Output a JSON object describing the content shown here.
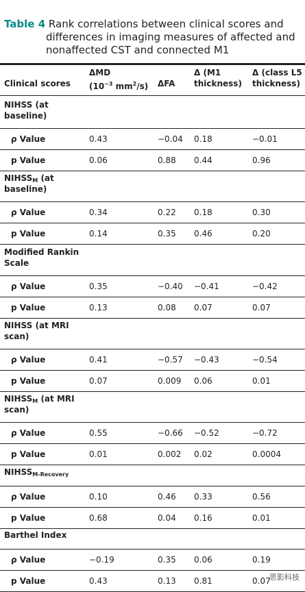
{
  "caption": {
    "label": "Table 4",
    "line1": "Rank correlations between clinical scores and",
    "line2": "differences in imaging measures of affected and",
    "line3": "nonaffected CST and connected M1"
  },
  "headers": {
    "clinical_scores": "Clinical scores",
    "md_line1": "ΔMD",
    "md_line2a": "(10",
    "md_exp": "−3",
    "md_line2b": " mm",
    "md_sq": "2",
    "md_line2c": "/s)",
    "fa": "ΔFA",
    "m1_line1": "Δ (M1",
    "m1_line2": "thickness)",
    "l5_line1": "Δ (class L5",
    "l5_line2": "thickness)"
  },
  "sections": [
    {
      "title": "NIHSS (at",
      "title2": "baseline)",
      "sub": "",
      "rows": [
        {
          "label": "ρ Value",
          "md": "0.43",
          "fa": "−0.04",
          "m1": "0.18",
          "l5": "−0.01"
        },
        {
          "label": "p Value",
          "md": "0.06",
          "fa": "0.88",
          "m1": "0.44",
          "l5": "0.96"
        }
      ]
    },
    {
      "title": "NIHSS",
      "sub": "M",
      "title_after": " (at",
      "title2": "baseline)",
      "rows": [
        {
          "label": "ρ Value",
          "md": "0.34",
          "fa": "0.22",
          "m1": "0.18",
          "l5": "0.30"
        },
        {
          "label": "p Value",
          "md": "0.14",
          "fa": "0.35",
          "m1": "0.46",
          "l5": "0.20"
        }
      ]
    },
    {
      "title": "Modified Rankin",
      "title2": "Scale",
      "sub": "",
      "rows": [
        {
          "label": "ρ Value",
          "md": "0.35",
          "fa": "−0.40",
          "m1": "−0.41",
          "l5": "−0.42"
        },
        {
          "label": "p Value",
          "md": "0.13",
          "fa": "0.08",
          "m1": "0.07",
          "l5": "0.07"
        }
      ]
    },
    {
      "title": "NIHSS (at MRI",
      "title2": "scan)",
      "sub": "",
      "rows": [
        {
          "label": "ρ Value",
          "md": "0.41",
          "fa": "−0.57",
          "m1": "−0.43",
          "l5": "−0.54"
        },
        {
          "label": "p Value",
          "md": "0.07",
          "fa": "0.009",
          "m1": "0.06",
          "l5": "0.01"
        }
      ]
    },
    {
      "title": "NIHSS",
      "sub": "M",
      "title_after": " (at MRI",
      "title2": "scan)",
      "rows": [
        {
          "label": "ρ Value",
          "md": "0.55",
          "fa": "−0.66",
          "m1": "−0.52",
          "l5": "−0.72"
        },
        {
          "label": "p Value",
          "md": "0.01",
          "fa": "0.002",
          "m1": "0.02",
          "l5": "0.0004"
        }
      ]
    },
    {
      "title": "NIHSS",
      "sub": "M-Recovery",
      "title_after": "",
      "title2": "",
      "rows": [
        {
          "label": "ρ Value",
          "md": "0.10",
          "fa": "0.46",
          "m1": "0.33",
          "l5": "0.56"
        },
        {
          "label": "p Value",
          "md": "0.68",
          "fa": "0.04",
          "m1": "0.16",
          "l5": "0.01"
        }
      ]
    },
    {
      "title": "Barthel Index",
      "title2": "",
      "sub": "",
      "rows": [
        {
          "label": "ρ Value",
          "md": "−0.19",
          "fa": "0.35",
          "m1": "0.06",
          "l5": "0.19"
        },
        {
          "label": "p Value",
          "md": "0.43",
          "fa": "0.13",
          "m1": "0.81",
          "l5": "0.07"
        }
      ]
    }
  ],
  "watermark": "思影科技"
}
